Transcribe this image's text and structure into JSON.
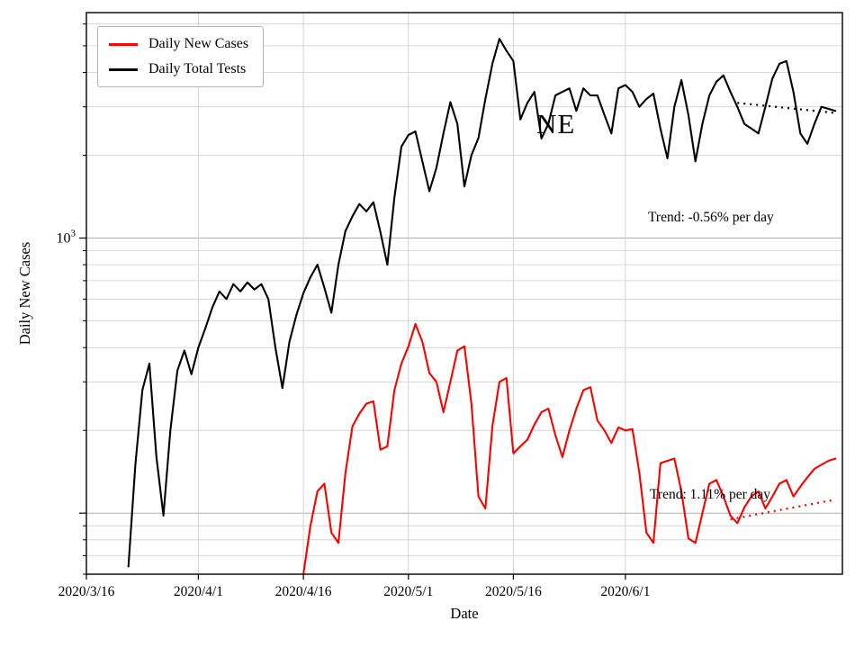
{
  "figure": {
    "annotation_state": "NE",
    "trend_tests_label": "Trend: -0.56% per day",
    "trend_cases_label": "Trend: 1.11% per day",
    "xlabel": "Date",
    "ylabel": "Daily New Cases",
    "legend": [
      "Daily New Cases",
      "Daily Total Tests"
    ]
  },
  "colors": {
    "cases": "#ff0000",
    "tests": "#000000",
    "grid_minor": "#cfcfcf",
    "grid_major": "#b0b0b0",
    "frame": "#000000"
  },
  "chart_data": {
    "type": "line",
    "yscale": "log",
    "ylim": [
      60,
      6600
    ],
    "x_range": {
      "start": "2020/3/16",
      "end": "2020/7/2"
    },
    "x_ticks": [
      "2020/3/16",
      "2020/4/1",
      "2020/4/16",
      "2020/5/1",
      "2020/5/16",
      "2020/6/1"
    ],
    "y_tick_labels": [
      "10^3"
    ],
    "series": [
      {
        "name": "Daily New Cases",
        "color": "#ff0000",
        "start_date": "2020/4/16",
        "values": [
          60,
          90,
          120,
          128,
          85,
          78,
          140,
          207,
          230,
          250,
          255,
          170,
          175,
          280,
          350,
          404,
          487,
          420,
          323,
          300,
          233,
          300,
          390,
          404,
          250,
          115,
          104,
          207,
          300,
          310,
          165,
          175,
          185,
          210,
          233,
          240,
          192,
          160,
          200,
          240,
          280,
          287,
          217,
          200,
          180,
          205,
          200,
          202,
          140,
          85,
          78,
          152,
          155,
          158,
          120,
          81,
          78,
          100,
          128,
          132,
          115,
          98,
          92,
          105,
          115,
          120,
          104,
          115,
          128,
          132,
          115,
          125,
          135,
          145,
          150,
          155,
          158
        ]
      },
      {
        "name": "Daily Total Tests",
        "color": "#000000",
        "start_date": "2020/3/22",
        "values": [
          64,
          150,
          280,
          350,
          160,
          98,
          200,
          330,
          390,
          320,
          400,
          470,
          560,
          640,
          600,
          680,
          640,
          690,
          650,
          680,
          600,
          400,
          285,
          420,
          525,
          630,
          720,
          800,
          660,
          535,
          800,
          1060,
          1200,
          1330,
          1250,
          1350,
          1050,
          800,
          1400,
          2150,
          2370,
          2440,
          1900,
          1480,
          1800,
          2400,
          3120,
          2600,
          1540,
          2000,
          2310,
          3200,
          4300,
          5300,
          4800,
          4400,
          2700,
          3100,
          3400,
          2300,
          2600,
          3300,
          3400,
          3500,
          2900,
          3500,
          3300,
          3300,
          2800,
          2400,
          3500,
          3600,
          3400,
          3000,
          3200,
          3350,
          2500,
          1950,
          3000,
          3750,
          2800,
          1900,
          2600,
          3300,
          3700,
          3900,
          3400,
          3000,
          2600,
          2500,
          2400,
          3000,
          3800,
          4300,
          4400,
          3400,
          2400,
          2200,
          2600,
          3000,
          2950,
          2900
        ]
      }
    ],
    "trend_lines": [
      {
        "series": "Daily Total Tests",
        "label": "Trend: -0.56% per day",
        "style": "dotted",
        "color": "#000000",
        "start_date": "2020/6/17",
        "end_date": "2020/7/1",
        "start_value": 3100,
        "end_value": 2850
      },
      {
        "series": "Daily New Cases",
        "label": "Trend: 1.11% per day",
        "style": "dotted",
        "color": "#ff0000",
        "start_date": "2020/6/16",
        "end_date": "2020/7/1",
        "start_value": 95,
        "end_value": 112
      }
    ]
  }
}
